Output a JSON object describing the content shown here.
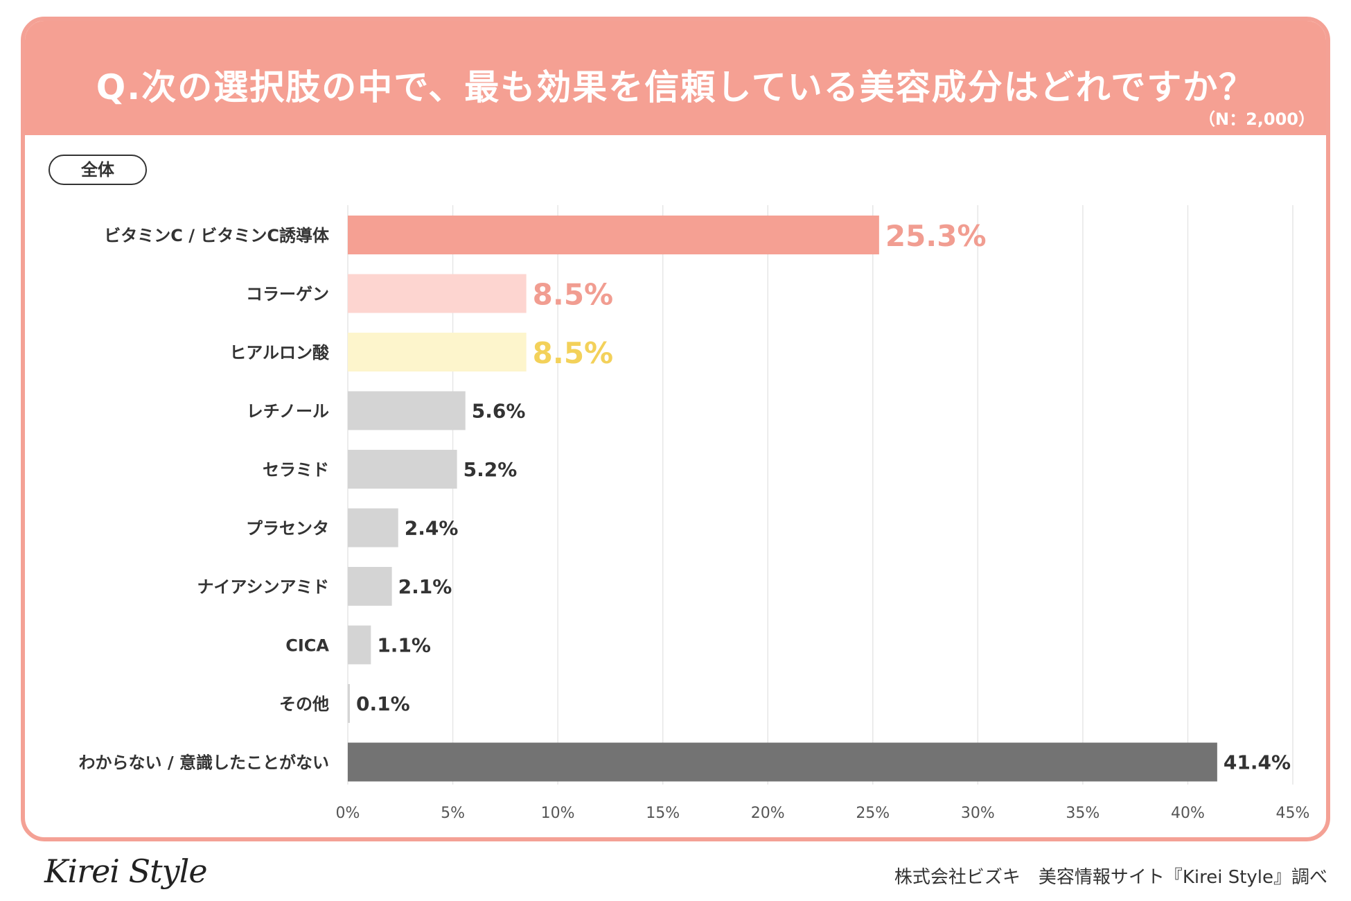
{
  "header": {
    "title": "Q.次の選択肢の中で、最も効果を信頼している美容成分はどれですか？",
    "sample": "（N：2,000）"
  },
  "segment_tag": "全体",
  "footer": {
    "logo": "Kirei Style",
    "credit": "株式会社ビズキ　美容情報サイト『Kirei Style』調べ"
  },
  "colors": {
    "accent": "#f5a093",
    "highlight_pink": "#f19d91",
    "light_pink": "#fdd5d0",
    "light_yellow": "#fdf5cc",
    "yellow_label": "#f3d15a",
    "gray_bar": "#d4d4d4",
    "dark_bar": "#737373",
    "label_text": "#333333"
  },
  "chart_data": {
    "type": "bar",
    "orientation": "horizontal",
    "title": "Q.次の選択肢の中で、最も効果を信頼している美容成分はどれですか？",
    "xlabel": "",
    "ylabel": "",
    "xlim": [
      0,
      45
    ],
    "grid": true,
    "categories": [
      "ビタミンC / ビタミンC誘導体",
      "コラーゲン",
      "ヒアルロン酸",
      "レチノール",
      "セラミド",
      "プラセンタ",
      "ナイアシンアミド",
      "CICA",
      "その他",
      "わからない / 意識したことがない"
    ],
    "values": [
      25.3,
      8.5,
      8.5,
      5.6,
      5.2,
      2.4,
      2.1,
      1.1,
      0.1,
      41.4
    ],
    "value_labels": [
      "25.3%",
      "8.5%",
      "8.5%",
      "5.6%",
      "5.2%",
      "2.4%",
      "2.1%",
      "1.1%",
      "0.1%",
      "41.4%"
    ],
    "x_ticks": [
      "0%",
      "5%",
      "10%",
      "15%",
      "20%",
      "25%",
      "30%",
      "35%",
      "40%",
      "45%"
    ],
    "tick_values": [
      0,
      5,
      10,
      15,
      20,
      25,
      30,
      35,
      40,
      45
    ],
    "bar_colors": [
      "#f5a093",
      "#fdd5d0",
      "#fdf5cc",
      "#d4d4d4",
      "#d4d4d4",
      "#d4d4d4",
      "#d4d4d4",
      "#d4d4d4",
      "#d4d4d4",
      "#737373"
    ],
    "label_colors": [
      "#f19d91",
      "#f19d91",
      "#f3d15a",
      "#333333",
      "#333333",
      "#333333",
      "#333333",
      "#333333",
      "#333333",
      "#333333"
    ],
    "label_emphasis": [
      true,
      true,
      true,
      false,
      false,
      false,
      false,
      false,
      false,
      false
    ]
  }
}
